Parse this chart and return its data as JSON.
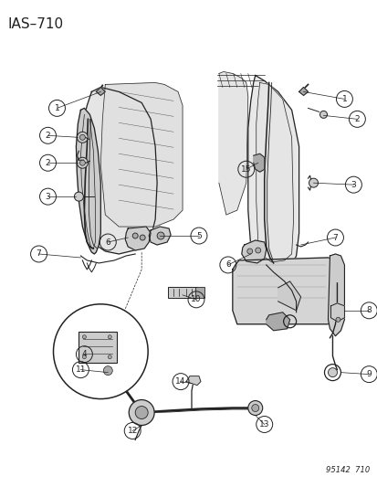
{
  "title": "IAS–710",
  "watermark": "95142  710",
  "bg": "#ffffff",
  "lc": "#222222",
  "gray1": "#cccccc",
  "gray2": "#aaaaaa",
  "gray3": "#e5e5e5",
  "title_fs": 11,
  "lbl_fs": 6.5,
  "wm_fs": 6,
  "r_lbl": 0.022,
  "figsize": [
    4.14,
    5.33
  ],
  "dpi": 100
}
